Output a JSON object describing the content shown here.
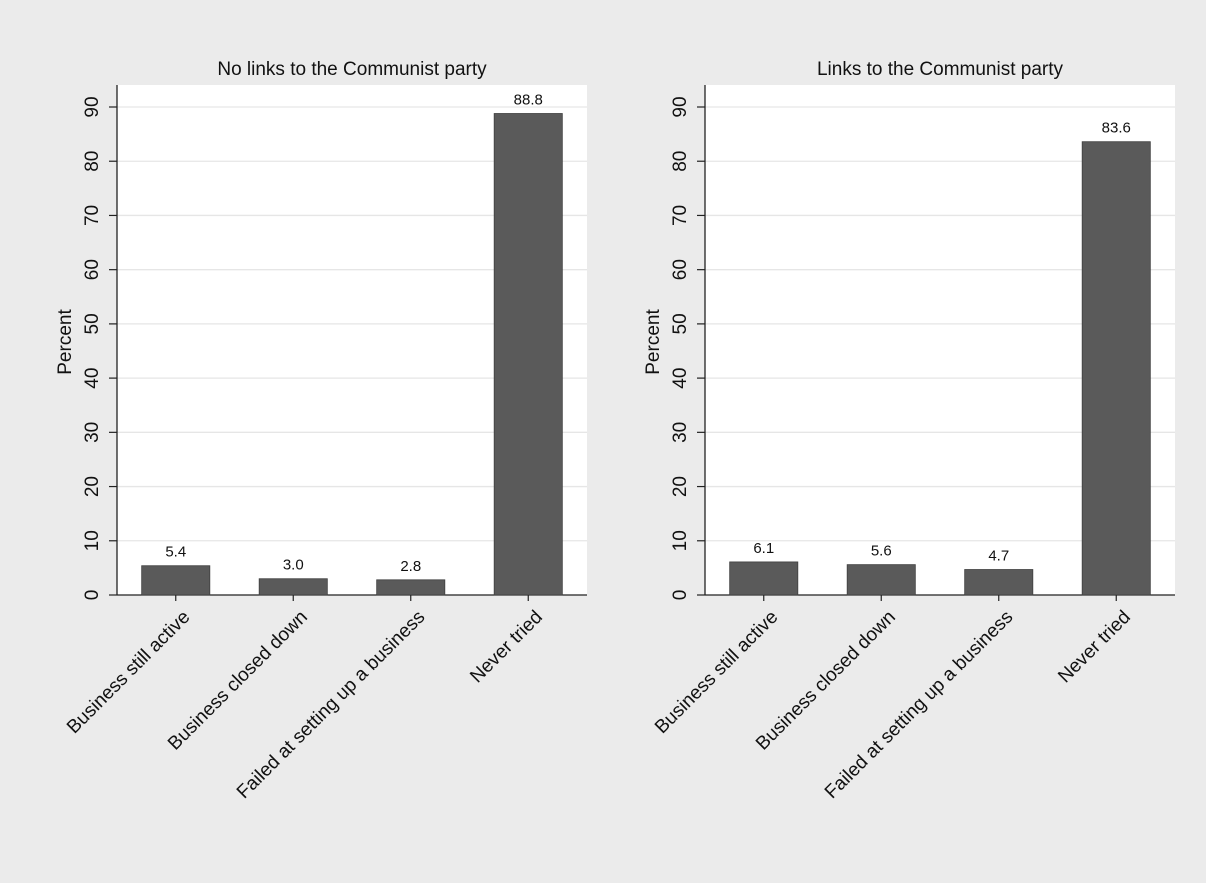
{
  "colors": {
    "background": "#ebebeb",
    "plot_background": "#ffffff",
    "bar": "#5a5a5a",
    "grid": "#e6e6e6",
    "axis": "#222222"
  },
  "chart_data": [
    {
      "type": "bar",
      "title": "No links to the Communist party",
      "ylabel": "Percent",
      "xlabel": "",
      "ylim": [
        0,
        90
      ],
      "yticks": [
        0,
        10,
        20,
        30,
        40,
        50,
        60,
        70,
        80,
        90
      ],
      "grid": true,
      "categories": [
        "Business still active",
        "Business closed down",
        "Failed at setting up a business",
        "Never tried"
      ],
      "values": [
        5.4,
        3.0,
        2.8,
        88.8
      ],
      "data_labels": [
        "5.4",
        "3.0",
        "2.8",
        "88.8"
      ]
    },
    {
      "type": "bar",
      "title": "Links to the Communist party",
      "ylabel": "Percent",
      "xlabel": "",
      "ylim": [
        0,
        90
      ],
      "yticks": [
        0,
        10,
        20,
        30,
        40,
        50,
        60,
        70,
        80,
        90
      ],
      "grid": true,
      "categories": [
        "Business still active",
        "Business closed down",
        "Failed at setting up a business",
        "Never tried"
      ],
      "values": [
        6.1,
        5.6,
        4.7,
        83.6
      ],
      "data_labels": [
        "6.1",
        "5.6",
        "4.7",
        "83.6"
      ]
    }
  ]
}
